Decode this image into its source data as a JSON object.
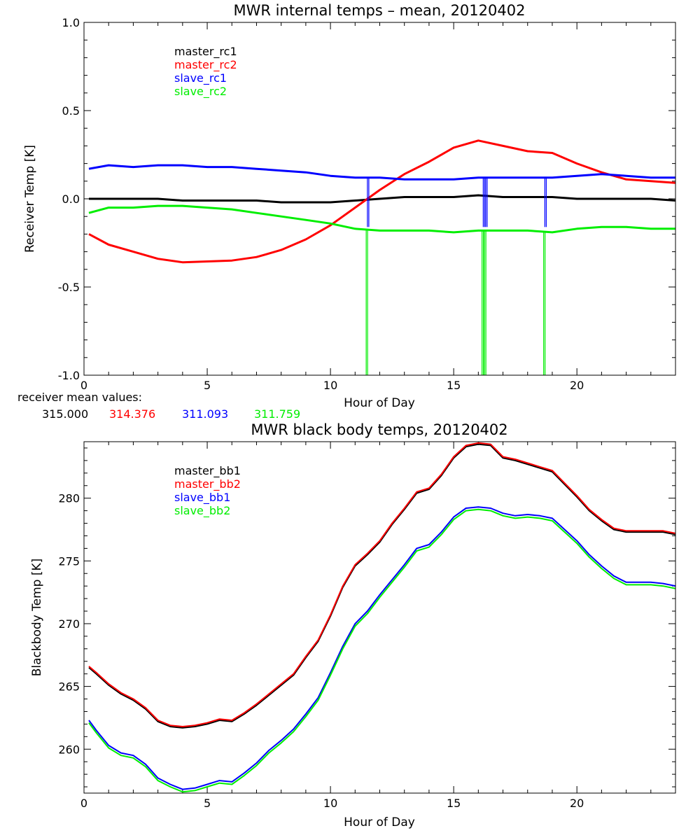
{
  "chart_data": [
    {
      "type": "line",
      "title": "MWR internal temps – mean, 20120402",
      "xlabel": "Hour of Day",
      "ylabel": "Receiver Temp [K]",
      "xlim": [
        0,
        24
      ],
      "ylim": [
        -1.0,
        1.0
      ],
      "x_ticks": [
        "0",
        "5",
        "10",
        "15",
        "20"
      ],
      "y_ticks": [
        "1.0",
        "0.5",
        "0.0",
        "-0.5",
        "-1.0"
      ],
      "grid": false,
      "legend_position": "top-left",
      "series": [
        {
          "name": "master_rc1",
          "color": "#000000",
          "x": [
            0.2,
            1,
            2,
            3,
            4,
            5,
            6,
            7,
            8,
            9,
            10,
            11,
            12,
            13,
            14,
            15,
            16,
            17,
            18,
            19,
            20,
            21,
            22,
            23,
            24
          ],
          "y": [
            0.0,
            0.0,
            0.0,
            0.0,
            -0.01,
            -0.01,
            -0.01,
            -0.01,
            -0.02,
            -0.02,
            -0.02,
            -0.01,
            0.0,
            0.01,
            0.01,
            0.01,
            0.02,
            0.01,
            0.01,
            0.01,
            0.0,
            0.0,
            0.0,
            0.0,
            -0.01
          ]
        },
        {
          "name": "master_rc2",
          "color": "#ff0000",
          "x": [
            0.2,
            1,
            2,
            3,
            4,
            5,
            6,
            7,
            8,
            9,
            10,
            11,
            12,
            13,
            14,
            15,
            16,
            17,
            18,
            19,
            20,
            21,
            22,
            23,
            24
          ],
          "y": [
            -0.2,
            -0.26,
            -0.3,
            -0.34,
            -0.36,
            -0.355,
            -0.35,
            -0.33,
            -0.29,
            -0.23,
            -0.15,
            -0.05,
            0.05,
            0.14,
            0.21,
            0.29,
            0.33,
            0.3,
            0.27,
            0.26,
            0.2,
            0.15,
            0.11,
            0.1,
            0.09
          ]
        },
        {
          "name": "slave_rc1",
          "color": "#0000ff",
          "x": [
            0.2,
            1,
            2,
            3,
            4,
            5,
            6,
            7,
            8,
            9,
            10,
            11,
            12,
            13,
            14,
            15,
            16,
            17,
            18,
            19,
            20,
            21,
            22,
            23,
            24
          ],
          "y": [
            0.17,
            0.19,
            0.18,
            0.19,
            0.19,
            0.18,
            0.18,
            0.17,
            0.16,
            0.15,
            0.13,
            0.12,
            0.12,
            0.11,
            0.11,
            0.11,
            0.12,
            0.12,
            0.12,
            0.12,
            0.13,
            0.14,
            0.13,
            0.12,
            0.12
          ],
          "dropouts": [
            11.5,
            16.2,
            16.3,
            18.7
          ],
          "dropout_min": -0.16
        },
        {
          "name": "slave_rc2",
          "color": "#00ee00",
          "x": [
            0.2,
            1,
            2,
            3,
            4,
            5,
            6,
            7,
            8,
            9,
            10,
            11,
            12,
            13,
            14,
            15,
            16,
            17,
            18,
            19,
            20,
            21,
            22,
            23,
            24
          ],
          "y": [
            -0.08,
            -0.05,
            -0.05,
            -0.04,
            -0.04,
            -0.05,
            -0.06,
            -0.08,
            -0.1,
            -0.12,
            -0.14,
            -0.17,
            -0.18,
            -0.18,
            -0.18,
            -0.19,
            -0.18,
            -0.18,
            -0.18,
            -0.19,
            -0.17,
            -0.16,
            -0.16,
            -0.17,
            -0.17
          ],
          "dropouts": [
            11.45,
            16.15,
            16.25,
            18.65
          ],
          "dropout_min": -1.0
        }
      ],
      "mean_values": {
        "label": "receiver mean values:",
        "values": [
          {
            "text": "315.000",
            "color": "#000000"
          },
          {
            "text": "314.376",
            "color": "#ff0000"
          },
          {
            "text": "311.093",
            "color": "#0000ff"
          },
          {
            "text": "311.759",
            "color": "#00ee00"
          }
        ]
      }
    },
    {
      "type": "line",
      "title": "MWR black body temps, 20120402",
      "xlabel": "Hour of Day",
      "ylabel": "Blackbody Temp [K]",
      "xlim": [
        0,
        24
      ],
      "ylim": [
        256.5,
        284.5
      ],
      "x_ticks": [
        "0",
        "5",
        "10",
        "15",
        "20"
      ],
      "y_ticks": [
        "280",
        "275",
        "270",
        "265",
        "260"
      ],
      "y_tick_values": [
        280,
        275,
        270,
        265,
        260
      ],
      "grid": false,
      "legend_position": "top-left",
      "series": [
        {
          "name": "master_bb1",
          "color": "#000000",
          "x": [
            0.2,
            0.5,
            1,
            1.5,
            2,
            2.5,
            3,
            3.5,
            4,
            4.5,
            5,
            5.5,
            6,
            6.5,
            7,
            7.5,
            8,
            8.5,
            9,
            9.5,
            10,
            10.5,
            11,
            11.5,
            12,
            12.5,
            13,
            13.5,
            14,
            14.5,
            15,
            15.5,
            16,
            16.5,
            17,
            17.5,
            18,
            18.5,
            19,
            19.5,
            20,
            20.5,
            21,
            21.5,
            22,
            22.5,
            23,
            23.5,
            24
          ],
          "y": [
            266.5,
            266,
            265.1,
            264.4,
            263.9,
            263.2,
            262.2,
            261.8,
            261.7,
            261.8,
            262.0,
            262.3,
            262.2,
            262.8,
            263.5,
            264.3,
            265.1,
            265.9,
            267.3,
            268.6,
            270.6,
            272.9,
            274.6,
            275.5,
            276.5,
            277.9,
            279.1,
            280.4,
            280.7,
            281.8,
            283.2,
            284.1,
            284.3,
            284.2,
            283.2,
            283.0,
            282.7,
            282.4,
            282.1,
            281.1,
            280.1,
            279.0,
            278.2,
            277.5,
            277.3,
            277.3,
            277.3,
            277.3,
            277.1
          ]
        },
        {
          "name": "master_bb2",
          "color": "#ff0000",
          "x": [
            0.2,
            0.5,
            1,
            1.5,
            2,
            2.5,
            3,
            3.5,
            4,
            4.5,
            5,
            5.5,
            6,
            6.5,
            7,
            7.5,
            8,
            8.5,
            9,
            9.5,
            10,
            10.5,
            11,
            11.5,
            12,
            12.5,
            13,
            13.5,
            14,
            14.5,
            15,
            15.5,
            16,
            16.5,
            17,
            17.5,
            18,
            18.5,
            19,
            19.5,
            20,
            20.5,
            21,
            21.5,
            22,
            22.5,
            23,
            23.5,
            24
          ],
          "y": [
            266.6,
            266.1,
            265.2,
            264.5,
            264.0,
            263.3,
            262.3,
            261.9,
            261.8,
            261.9,
            262.1,
            262.4,
            262.3,
            262.9,
            263.6,
            264.4,
            265.2,
            266.0,
            267.4,
            268.7,
            270.7,
            273.0,
            274.7,
            275.6,
            276.6,
            278.0,
            279.2,
            280.5,
            280.8,
            281.9,
            283.3,
            284.2,
            284.4,
            284.3,
            283.3,
            283.1,
            282.8,
            282.5,
            282.2,
            281.2,
            280.2,
            279.1,
            278.3,
            277.6,
            277.4,
            277.4,
            277.4,
            277.4,
            277.2
          ]
        },
        {
          "name": "slave_bb1",
          "color": "#0000ff",
          "x": [
            0.2,
            0.5,
            1,
            1.5,
            2,
            2.5,
            3,
            3.5,
            4,
            4.5,
            5,
            5.5,
            6,
            6.5,
            7,
            7.5,
            8,
            8.5,
            9,
            9.5,
            10,
            10.5,
            11,
            11.5,
            12,
            12.5,
            13,
            13.5,
            14,
            14.5,
            15,
            15.5,
            16,
            16.5,
            17,
            17.5,
            18,
            18.5,
            19,
            19.5,
            20,
            20.5,
            21,
            21.5,
            22,
            22.5,
            23,
            23.5,
            24
          ],
          "y": [
            262.3,
            261.5,
            260.3,
            259.7,
            259.5,
            258.8,
            257.7,
            257.2,
            256.8,
            256.9,
            257.2,
            257.5,
            257.4,
            258.1,
            258.9,
            259.9,
            260.7,
            261.6,
            262.8,
            264.1,
            266.1,
            268.2,
            270.0,
            271.0,
            272.3,
            273.5,
            274.7,
            276.0,
            276.3,
            277.3,
            278.5,
            279.2,
            279.3,
            279.2,
            278.8,
            278.6,
            278.7,
            278.6,
            278.4,
            277.5,
            276.6,
            275.5,
            274.6,
            273.8,
            273.3,
            273.3,
            273.3,
            273.2,
            273.0
          ]
        },
        {
          "name": "slave_bb2",
          "color": "#00ee00",
          "x": [
            0.2,
            0.5,
            1,
            1.5,
            2,
            2.5,
            3,
            3.5,
            4,
            4.5,
            5,
            5.5,
            6,
            6.5,
            7,
            7.5,
            8,
            8.5,
            9,
            9.5,
            10,
            10.5,
            11,
            11.5,
            12,
            12.5,
            13,
            13.5,
            14,
            14.5,
            15,
            15.5,
            16,
            16.5,
            17,
            17.5,
            18,
            18.5,
            19,
            19.5,
            20,
            20.5,
            21,
            21.5,
            22,
            22.5,
            23,
            23.5,
            24
          ],
          "y": [
            262.1,
            261.3,
            260.1,
            259.5,
            259.3,
            258.6,
            257.5,
            257.0,
            256.6,
            256.7,
            257.0,
            257.3,
            257.2,
            257.9,
            258.7,
            259.7,
            260.5,
            261.4,
            262.6,
            263.9,
            265.9,
            268.0,
            269.8,
            270.8,
            272.1,
            273.3,
            274.5,
            275.8,
            276.1,
            277.1,
            278.3,
            279.0,
            279.1,
            279.0,
            278.6,
            278.4,
            278.5,
            278.4,
            278.2,
            277.3,
            276.4,
            275.3,
            274.4,
            273.6,
            273.1,
            273.1,
            273.1,
            273.0,
            272.8
          ]
        }
      ]
    }
  ]
}
